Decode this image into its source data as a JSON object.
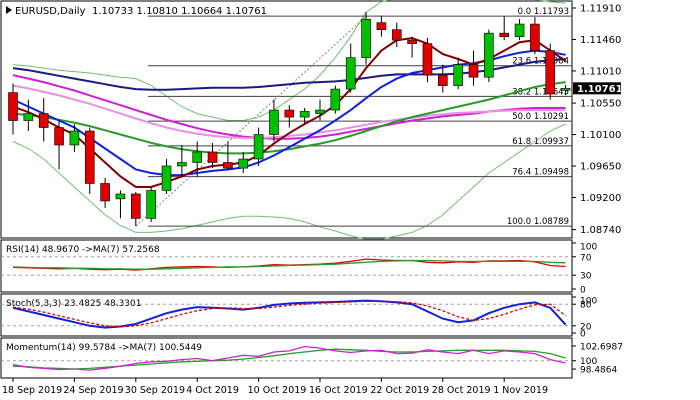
{
  "header": {
    "symbol": "EURUSD,Daily",
    "ohlc": "1.10733 1.10810 1.10664 1.10761"
  },
  "current_price": "1.10761",
  "colors": {
    "bull": "#00c000",
    "bear": "#e00000",
    "ma_navy": "#1a1a80",
    "ma_blue": "#1020e0",
    "ma_maroon": "#800000",
    "ma_green": "#2a9a2a",
    "ma_magenta": "#d020d0",
    "ma_pink": "#e890e8",
    "boll_green": "#70c070",
    "level_line": "#404040",
    "price_box": "#000000"
  },
  "chart_data": {
    "type": "candlestick",
    "price_axis": {
      "min": 1.0862,
      "max": 1.1201,
      "ticks": [
        "1.11910",
        "1.11460",
        "1.11010",
        "1.10761",
        "1.10550",
        "1.10100",
        "1.09650",
        "1.09200",
        "1.08740"
      ]
    },
    "dates": [
      "18 Sep 2019",
      "24 Sep 2019",
      "30 Sep 2019",
      "4 Oct 2019",
      "10 Oct 2019",
      "16 Oct 2019",
      "22 Oct 2019",
      "28 Oct 2019",
      "1 Nov 2019"
    ],
    "date_indices": [
      0,
      4,
      8,
      12,
      16,
      20,
      24,
      28,
      32
    ],
    "candles": [
      {
        "o": 1.107,
        "h": 1.1083,
        "l": 1.101,
        "c": 1.103
      },
      {
        "o": 1.103,
        "h": 1.106,
        "l": 1.1015,
        "c": 1.104
      },
      {
        "o": 1.104,
        "h": 1.1062,
        "l": 1.1,
        "c": 1.102
      },
      {
        "o": 1.102,
        "h": 1.103,
        "l": 1.096,
        "c": 1.0995
      },
      {
        "o": 1.0995,
        "h": 1.1025,
        "l": 1.0985,
        "c": 1.1015
      },
      {
        "o": 1.1015,
        "h": 1.102,
        "l": 1.0925,
        "c": 1.094
      },
      {
        "o": 1.094,
        "h": 1.0948,
        "l": 1.0905,
        "c": 1.0915
      },
      {
        "o": 1.0918,
        "h": 1.093,
        "l": 1.089,
        "c": 1.0925
      },
      {
        "o": 1.0925,
        "h": 1.0928,
        "l": 1.0879,
        "c": 1.089
      },
      {
        "o": 1.089,
        "h": 1.0935,
        "l": 1.0885,
        "c": 1.093
      },
      {
        "o": 1.093,
        "h": 1.0975,
        "l": 1.0925,
        "c": 1.0965
      },
      {
        "o": 1.0965,
        "h": 1.0995,
        "l": 1.095,
        "c": 1.097
      },
      {
        "o": 1.097,
        "h": 1.1,
        "l": 1.095,
        "c": 1.0985
      },
      {
        "o": 1.0985,
        "h": 1.0998,
        "l": 1.0962,
        "c": 1.097
      },
      {
        "o": 1.097,
        "h": 1.1,
        "l": 1.096,
        "c": 1.0962
      },
      {
        "o": 1.0962,
        "h": 1.0985,
        "l": 1.0955,
        "c": 1.0975
      },
      {
        "o": 1.0975,
        "h": 1.102,
        "l": 1.0965,
        "c": 1.101
      },
      {
        "o": 1.101,
        "h": 1.106,
        "l": 1.1,
        "c": 1.1045
      },
      {
        "o": 1.1045,
        "h": 1.1052,
        "l": 1.102,
        "c": 1.1035
      },
      {
        "o": 1.1035,
        "h": 1.1048,
        "l": 1.1025,
        "c": 1.1043
      },
      {
        "o": 1.104,
        "h": 1.106,
        "l": 1.103,
        "c": 1.1045
      },
      {
        "o": 1.1045,
        "h": 1.108,
        "l": 1.104,
        "c": 1.1075
      },
      {
        "o": 1.1075,
        "h": 1.114,
        "l": 1.107,
        "c": 1.112
      },
      {
        "o": 1.112,
        "h": 1.1185,
        "l": 1.111,
        "c": 1.1175
      },
      {
        "o": 1.117,
        "h": 1.118,
        "l": 1.115,
        "c": 1.116
      },
      {
        "o": 1.116,
        "h": 1.117,
        "l": 1.1135,
        "c": 1.1145
      },
      {
        "o": 1.1145,
        "h": 1.115,
        "l": 1.112,
        "c": 1.114
      },
      {
        "o": 1.114,
        "h": 1.1148,
        "l": 1.1085,
        "c": 1.1095
      },
      {
        "o": 1.1095,
        "h": 1.111,
        "l": 1.107,
        "c": 1.108
      },
      {
        "o": 1.108,
        "h": 1.112,
        "l": 1.1075,
        "c": 1.111
      },
      {
        "o": 1.111,
        "h": 1.113,
        "l": 1.108,
        "c": 1.1092
      },
      {
        "o": 1.1092,
        "h": 1.116,
        "l": 1.1085,
        "c": 1.1155
      },
      {
        "o": 1.1155,
        "h": 1.1179,
        "l": 1.1145,
        "c": 1.115
      },
      {
        "o": 1.115,
        "h": 1.1175,
        "l": 1.1145,
        "c": 1.1168
      },
      {
        "o": 1.1168,
        "h": 1.1178,
        "l": 1.1125,
        "c": 1.113
      },
      {
        "o": 1.113,
        "h": 1.114,
        "l": 1.106,
        "c": 1.1068
      },
      {
        "o": 1.10733,
        "h": 1.1081,
        "l": 1.10664,
        "c": 1.10761
      }
    ],
    "fib_levels": [
      {
        "label": "0.0 1.11793",
        "price": 1.11793
      },
      {
        "label": "23.6 1.11084",
        "price": 1.11084
      },
      {
        "label": "38.2 1.10645",
        "price": 1.10645
      },
      {
        "label": "50.0 1.10291",
        "price": 1.10291
      },
      {
        "label": "61.8 1.09937",
        "price": 1.09937
      },
      {
        "label": "76.4 1.09498",
        "price": 1.09498
      },
      {
        "label": "100.0 1.08789",
        "price": 1.08789
      }
    ],
    "moving_averages": [
      {
        "color_key": "ma_navy",
        "values": [
          1.1105,
          1.1102,
          1.1098,
          1.1094,
          1.109,
          1.1086,
          1.1082,
          1.1078,
          1.1075,
          1.1074,
          1.1074,
          1.1075,
          1.1076,
          1.1077,
          1.1077,
          1.1077,
          1.1078,
          1.108,
          1.1082,
          1.1084,
          1.1085,
          1.1086,
          1.1088,
          1.1091,
          1.1094,
          1.1096,
          1.1096,
          1.1096,
          1.1096,
          1.1097,
          1.1099,
          1.1102,
          1.1106,
          1.111,
          1.1114,
          1.1116,
          1.1118
        ]
      },
      {
        "color_key": "ma_magenta",
        "values": [
          1.1095,
          1.109,
          1.1085,
          1.1079,
          1.1073,
          1.1066,
          1.1059,
          1.1052,
          1.1045,
          1.1038,
          1.1031,
          1.1025,
          1.1019,
          1.1014,
          1.101,
          1.1007,
          1.1005,
          1.1004,
          1.1004,
          1.1005,
          1.1007,
          1.101,
          1.1014,
          1.1018,
          1.1022,
          1.1026,
          1.103,
          1.1033,
          1.1036,
          1.1038,
          1.104,
          1.1043,
          1.1045,
          1.1047,
          1.1048,
          1.1048,
          1.1048
        ]
      },
      {
        "color_key": "ma_pink",
        "values": [
          1.108,
          1.1076,
          1.1071,
          1.1066,
          1.106,
          1.1054,
          1.1047,
          1.104,
          1.1033,
          1.1026,
          1.102,
          1.1015,
          1.1011,
          1.1008,
          1.1006,
          1.1005,
          1.1005,
          1.1006,
          1.1008,
          1.101,
          1.1013,
          1.1016,
          1.102,
          1.1024,
          1.1028,
          1.1031,
          1.1034,
          1.1037,
          1.1039,
          1.1041,
          1.1042,
          1.1043,
          1.1044,
          1.1045,
          1.1045,
          1.1045,
          1.1045
        ]
      },
      {
        "color_key": "ma_green",
        "values": [
          1.104,
          1.1038,
          1.1035,
          1.1031,
          1.1027,
          1.1022,
          1.1016,
          1.101,
          1.1004,
          1.0998,
          1.0993,
          1.0989,
          1.0986,
          1.0984,
          1.0983,
          1.0983,
          1.0984,
          1.0986,
          1.0989,
          1.0993,
          1.0997,
          1.1002,
          1.1008,
          1.1015,
          1.1022,
          1.1029,
          1.1035,
          1.104,
          1.1045,
          1.105,
          1.1055,
          1.106,
          1.1066,
          1.1072,
          1.1078,
          1.1082,
          1.1085
        ]
      },
      {
        "color_key": "ma_blue",
        "values": [
          1.106,
          1.105,
          1.104,
          1.103,
          1.102,
          1.1005,
          1.099,
          1.0975,
          1.096,
          1.0955,
          1.0952,
          1.0952,
          1.0955,
          1.0958,
          1.096,
          1.0963,
          1.097,
          1.098,
          1.0992,
          1.1004,
          1.1016,
          1.103,
          1.1045,
          1.1062,
          1.1078,
          1.109,
          1.1098,
          1.1102,
          1.1106,
          1.111,
          1.1112,
          1.1116,
          1.1122,
          1.1127,
          1.113,
          1.1128,
          1.1124
        ]
      },
      {
        "color_key": "ma_maroon",
        "values": [
          1.105,
          1.1042,
          1.1032,
          1.102,
          1.101,
          1.099,
          1.097,
          1.095,
          1.0935,
          1.0935,
          1.0942,
          1.095,
          1.096,
          1.0965,
          1.0967,
          1.097,
          1.098,
          1.0997,
          1.1012,
          1.1025,
          1.1037,
          1.1052,
          1.1075,
          1.1105,
          1.113,
          1.1145,
          1.1148,
          1.114,
          1.1125,
          1.1118,
          1.111,
          1.1118,
          1.113,
          1.1142,
          1.1145,
          1.113,
          1.1115
        ]
      }
    ],
    "bollinger": [
      {
        "color_key": "boll_green",
        "values": [
          1.111,
          1.1108,
          1.1105,
          1.1102,
          1.11,
          1.1098,
          1.1095,
          1.1092,
          1.109,
          1.108,
          1.1065,
          1.105,
          1.104,
          1.1035,
          1.103,
          1.103,
          1.1035,
          1.1045,
          1.106,
          1.1075,
          1.1095,
          1.112,
          1.115,
          1.1185,
          1.12,
          1.1205,
          1.1205,
          1.1205,
          1.1205,
          1.1205,
          1.1205,
          1.1205,
          1.1205,
          1.1205,
          1.1203,
          1.12,
          1.1198
        ]
      },
      {
        "color_key": "boll_green",
        "values": [
          1.1,
          1.099,
          1.0975,
          1.0955,
          1.0935,
          1.0915,
          1.0895,
          1.088,
          1.087,
          1.087,
          1.0872,
          1.0875,
          1.088,
          1.0885,
          1.089,
          1.0893,
          1.0893,
          1.0892,
          1.089,
          1.0885,
          1.0878,
          1.0872,
          1.0865,
          1.086,
          1.086,
          1.0865,
          1.087,
          1.088,
          1.0895,
          1.0915,
          1.0935,
          1.0955,
          1.097,
          1.0985,
          1.1,
          1.1015,
          1.1025
        ]
      }
    ],
    "fib_line_price": [
      1.0879,
      1.1179
    ],
    "panels": [
      {
        "id": "rsi",
        "label": "RSI(14) 48.9670 ->MA(7) 57.2568",
        "min": 0,
        "max": 100,
        "ticks": [
          {
            "label": "100",
            "v": 100
          },
          {
            "label": "70",
            "v": 70
          },
          {
            "label": "30",
            "v": 30
          },
          {
            "label": "0",
            "v": 0
          }
        ],
        "guides": [
          70,
          30
        ],
        "series": [
          {
            "color_key": "bear",
            "values": [
              47,
              46,
              45,
              44,
              45,
              43,
              42,
              43,
              41,
              44,
              47,
              48,
              49,
              48,
              47,
              48,
              50,
              53,
              52,
              53,
              54,
              56,
              60,
              65,
              63,
              62,
              62,
              58,
              57,
              59,
              58,
              61,
              61,
              62,
              59,
              51,
              49
            ]
          },
          {
            "color_key": "ma_green",
            "values": [
              48,
              47,
              46,
              46,
              45,
              45,
              44,
              44,
              43,
              43,
              44,
              45,
              46,
              47,
              48,
              48,
              49,
              50,
              51,
              52,
              53,
              54,
              56,
              58,
              60,
              61,
              62,
              62,
              61,
              60,
              60,
              60,
              60,
              60,
              60,
              58,
              57
            ]
          }
        ]
      },
      {
        "id": "stoch",
        "label": "Stoch(5,3,3) 23.4825 48.3301",
        "min": 0,
        "max": 100,
        "ticks": [
          {
            "label": "100",
            "v": 100
          },
          {
            "label": "80",
            "v": 80
          },
          {
            "label": "20",
            "v": 20
          },
          {
            "label": "0",
            "v": 0
          }
        ],
        "guides": [
          80,
          20
        ],
        "series": [
          {
            "color_key": "ma_blue",
            "values": [
              70,
              60,
              50,
              40,
              30,
              20,
              15,
              18,
              25,
              40,
              55,
              65,
              72,
              70,
              68,
              65,
              70,
              78,
              82,
              84,
              85,
              86,
              88,
              90,
              88,
              85,
              80,
              60,
              40,
              30,
              35,
              55,
              70,
              80,
              85,
              70,
              23
            ]
          },
          {
            "color_key": "bear",
            "values": [
              72,
              66,
              58,
              48,
              38,
              28,
              20,
              17,
              20,
              28,
              40,
              52,
              62,
              68,
              70,
              68,
              68,
              72,
              77,
              80,
              83,
              85,
              86,
              88,
              88,
              87,
              84,
              75,
              62,
              45,
              35,
              40,
              52,
              66,
              78,
              80,
              48
            ]
          }
        ]
      },
      {
        "id": "mom",
        "label": "Momentum(14) 99.5784 ->MA(7) 100.5449",
        "min": 97.4,
        "max": 103.6,
        "ticks": [
          {
            "label": "102.6987",
            "v": 102.6987
          },
          {
            "label": "100",
            "v": 100
          },
          {
            "label": "98.4864",
            "v": 98.4864
          }
        ],
        "guides": [
          100
        ],
        "series": [
          {
            "color_key": "ma_green",
            "values": [
              99.0,
              98.9,
              98.7,
              98.6,
              98.5,
              98.6,
              98.8,
              99.0,
              99.2,
              99.4,
              99.6,
              99.8,
              99.9,
              100.0,
              100.1,
              100.3,
              100.6,
              100.9,
              101.3,
              101.6,
              101.9,
              102.1,
              102.0,
              101.9,
              101.7,
              101.6,
              101.6,
              101.7,
              101.8,
              101.9,
              101.9,
              101.9,
              101.9,
              101.8,
              101.7,
              101.3,
              100.5
            ]
          },
          {
            "color_key": "ma_magenta",
            "values": [
              99.3,
              98.8,
              98.6,
              98.4,
              98.5,
              98.3,
              98.6,
              99.0,
              99.5,
              99.8,
              99.9,
              100.2,
              100.4,
              100.0,
              100.5,
              101.0,
              100.8,
              101.6,
              101.8,
              102.6,
              102.3,
              101.8,
              101.5,
              101.8,
              101.9,
              101.3,
              101.4,
              102.0,
              101.6,
              101.3,
              101.9,
              101.3,
              101.8,
              101.6,
              101.3,
              100.2,
              99.58
            ]
          }
        ]
      }
    ]
  }
}
